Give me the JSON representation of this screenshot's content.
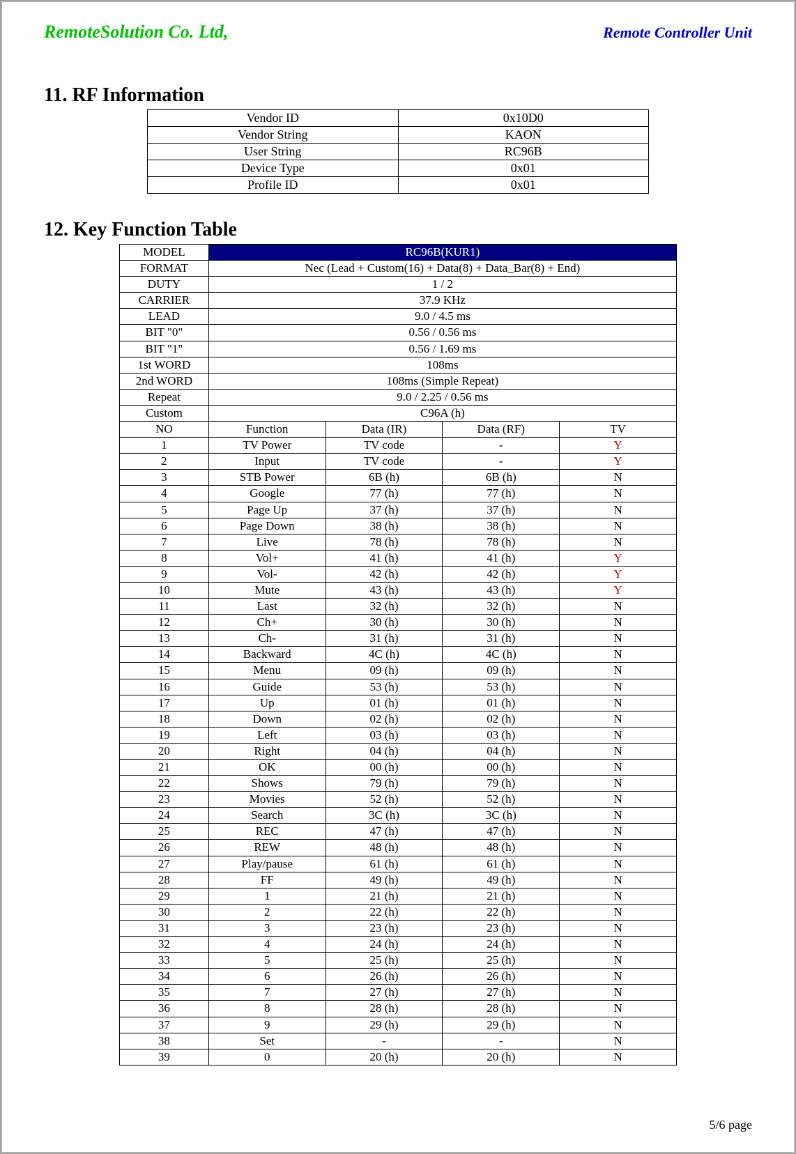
{
  "header": {
    "company": "RemoteSolution Co. Ltd,",
    "unit": "Remote Controller Unit"
  },
  "section_rf": {
    "title": "11.  RF Information",
    "rows": [
      {
        "label": "Vendor ID",
        "value": "0x10D0"
      },
      {
        "label": "Vendor String",
        "value": "KAON"
      },
      {
        "label": "User String",
        "value": "RC96B"
      },
      {
        "label": "Device Type",
        "value": "0x01"
      },
      {
        "label": "Profile ID",
        "value": "0x01"
      }
    ]
  },
  "section_kf": {
    "title": "12.  Key Function Table",
    "meta": [
      {
        "label": "MODEL",
        "value": "RC96B(KUR1)",
        "style": "model"
      },
      {
        "label": "FORMAT",
        "value": "Nec (Lead + Custom(16) + Data(8) + Data_Bar(8) + End)"
      },
      {
        "label": "DUTY",
        "value": "1 / 2"
      },
      {
        "label": "CARRIER",
        "value": "37.9 KHz"
      },
      {
        "label": "LEAD",
        "value": "9.0 / 4.5 ms"
      },
      {
        "label": "BIT \"0\"",
        "value": "0.56 / 0.56 ms"
      },
      {
        "label": "BIT \"1\"",
        "value": "0.56 / 1.69 ms"
      },
      {
        "label": "1st WORD",
        "value": "108ms"
      },
      {
        "label": "2nd WORD",
        "value": "108ms (Simple Repeat)"
      },
      {
        "label": "Repeat",
        "value": "9.0 / 2.25 / 0.56 ms"
      },
      {
        "label": "Custom",
        "value": "C96A (h)"
      }
    ],
    "columns": [
      "NO",
      "Function",
      "Data (IR)",
      "Data (RF)",
      "TV"
    ],
    "rows": [
      {
        "no": "1",
        "fn": "TV Power",
        "ir": "TV code",
        "rf": "-",
        "tv": "Y",
        "tvred": true
      },
      {
        "no": "2",
        "fn": "Input",
        "ir": "TV code",
        "rf": "-",
        "tv": "Y",
        "tvred": true
      },
      {
        "no": "3",
        "fn": "STB Power",
        "ir": "6B (h)",
        "rf": "6B (h)",
        "tv": "N"
      },
      {
        "no": "4",
        "fn": "Google",
        "ir": "77 (h)",
        "rf": "77 (h)",
        "tv": "N"
      },
      {
        "no": "5",
        "fn": "Page Up",
        "ir": "37 (h)",
        "rf": "37 (h)",
        "tv": "N"
      },
      {
        "no": "6",
        "fn": "Page Down",
        "ir": "38 (h)",
        "rf": "38 (h)",
        "tv": "N"
      },
      {
        "no": "7",
        "fn": "Live",
        "ir": "78 (h)",
        "rf": "78 (h)",
        "tv": "N"
      },
      {
        "no": "8",
        "fn": "Vol+",
        "ir": "41 (h)",
        "rf": "41 (h)",
        "tv": "Y",
        "tvred": true
      },
      {
        "no": "9",
        "fn": "Vol-",
        "ir": "42 (h)",
        "rf": "42 (h)",
        "tv": "Y",
        "tvred": true
      },
      {
        "no": "10",
        "fn": "Mute",
        "ir": "43 (h)",
        "rf": "43 (h)",
        "tv": "Y",
        "tvred": true
      },
      {
        "no": "11",
        "fn": "Last",
        "ir": "32 (h)",
        "rf": "32 (h)",
        "tv": "N"
      },
      {
        "no": "12",
        "fn": "Ch+",
        "ir": "30 (h)",
        "rf": "30 (h)",
        "tv": "N"
      },
      {
        "no": "13",
        "fn": "Ch-",
        "ir": "31 (h)",
        "rf": "31 (h)",
        "tv": "N"
      },
      {
        "no": "14",
        "fn": "Backward",
        "ir": "4C (h)",
        "rf": "4C (h)",
        "tv": "N"
      },
      {
        "no": "15",
        "fn": "Menu",
        "ir": "09 (h)",
        "rf": "09 (h)",
        "tv": "N"
      },
      {
        "no": "16",
        "fn": "Guide",
        "ir": "53 (h)",
        "rf": "53 (h)",
        "tv": "N"
      },
      {
        "no": "17",
        "fn": "Up",
        "ir": "01 (h)",
        "rf": "01 (h)",
        "tv": "N"
      },
      {
        "no": "18",
        "fn": "Down",
        "ir": "02 (h)",
        "rf": "02 (h)",
        "tv": "N"
      },
      {
        "no": "19",
        "fn": "Left",
        "ir": "03 (h)",
        "rf": "03 (h)",
        "tv": "N"
      },
      {
        "no": "20",
        "fn": "Right",
        "ir": "04 (h)",
        "rf": "04 (h)",
        "tv": "N"
      },
      {
        "no": "21",
        "fn": "OK",
        "ir": "00 (h)",
        "rf": "00 (h)",
        "tv": "N"
      },
      {
        "no": "22",
        "fn": "Shows",
        "ir": "79 (h)",
        "rf": "79 (h)",
        "tv": "N"
      },
      {
        "no": "23",
        "fn": "Movies",
        "ir": "52 (h)",
        "rf": "52 (h)",
        "tv": "N"
      },
      {
        "no": "24",
        "fn": "Search",
        "ir": "3C (h)",
        "rf": "3C (h)",
        "tv": "N"
      },
      {
        "no": "25",
        "fn": "REC",
        "ir": "47 (h)",
        "rf": "47 (h)",
        "tv": "N"
      },
      {
        "no": "26",
        "fn": "REW",
        "ir": "48 (h)",
        "rf": "48 (h)",
        "tv": "N"
      },
      {
        "no": "27",
        "fn": "Play/pause",
        "ir": "61 (h)",
        "rf": "61 (h)",
        "tv": "N"
      },
      {
        "no": "28",
        "fn": "FF",
        "ir": "49 (h)",
        "rf": "49 (h)",
        "tv": "N"
      },
      {
        "no": "29",
        "fn": "1",
        "ir": "21 (h)",
        "rf": "21 (h)",
        "tv": "N"
      },
      {
        "no": "30",
        "fn": "2",
        "ir": "22 (h)",
        "rf": "22 (h)",
        "tv": "N"
      },
      {
        "no": "31",
        "fn": "3",
        "ir": "23 (h)",
        "rf": "23 (h)",
        "tv": "N"
      },
      {
        "no": "32",
        "fn": "4",
        "ir": "24 (h)",
        "rf": "24 (h)",
        "tv": "N"
      },
      {
        "no": "33",
        "fn": "5",
        "ir": "25 (h)",
        "rf": "25 (h)",
        "tv": "N"
      },
      {
        "no": "34",
        "fn": "6",
        "ir": "26 (h)",
        "rf": "26 (h)",
        "tv": "N"
      },
      {
        "no": "35",
        "fn": "7",
        "ir": "27 (h)",
        "rf": "27 (h)",
        "tv": "N"
      },
      {
        "no": "36",
        "fn": "8",
        "ir": "28 (h)",
        "rf": "28 (h)",
        "tv": "N"
      },
      {
        "no": "37",
        "fn": "9",
        "ir": "29 (h)",
        "rf": "29 (h)",
        "tv": "N"
      },
      {
        "no": "38",
        "fn": "Set",
        "ir": "-",
        "rf": "-",
        "tv": "N"
      },
      {
        "no": "39",
        "fn": "0",
        "ir": "20 (h)",
        "rf": "20 (h)",
        "tv": "N"
      }
    ]
  },
  "footer": {
    "page": "5/6 page"
  }
}
